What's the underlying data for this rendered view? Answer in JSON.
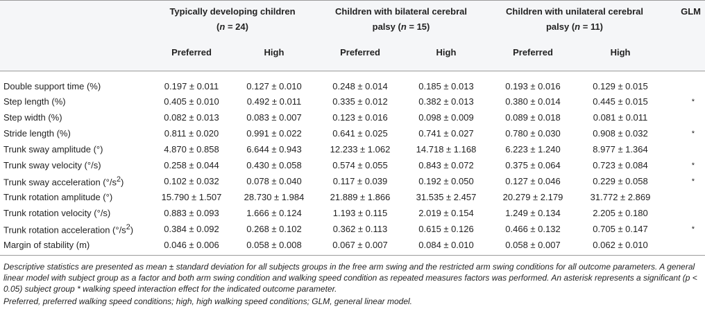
{
  "header": {
    "groups": [
      {
        "line1": "Typically developing children",
        "n_label": "n",
        "n_value": " = 24)"
      },
      {
        "line1": "Children with bilateral cerebral",
        "line2_prefix": "palsy (",
        "n_label": "n",
        "n_value": " = 15)"
      },
      {
        "line1": "Children with unilateral cerebral",
        "line2_prefix": "palsy (",
        "n_label": "n",
        "n_value": " = 11)"
      }
    ],
    "glm": "GLM",
    "preferred": "Preferred",
    "high": "High",
    "open_paren": "("
  },
  "rows": [
    {
      "label": "Double support time (%)",
      "values": [
        "0.197 ± 0.011",
        "0.127 ± 0.010",
        "0.248 ± 0.014",
        "0.185 ± 0.013",
        "0.193 ± 0.016",
        "0.129 ± 0.015"
      ],
      "glm": ""
    },
    {
      "label": "Step length (%)",
      "values": [
        "0.405 ± 0.010",
        "0.492 ± 0.011",
        "0.335 ± 0.012",
        "0.382 ± 0.013",
        "0.380 ± 0.014",
        "0.445 ± 0.015"
      ],
      "glm": "*"
    },
    {
      "label": "Step width (%)",
      "values": [
        "0.082 ± 0.013",
        "0.083 ± 0.007",
        "0.123 ± 0.016",
        "0.098 ± 0.009",
        "0.089 ± 0.018",
        "0.081 ± 0.011"
      ],
      "glm": ""
    },
    {
      "label": "Stride length (%)",
      "values": [
        "0.811 ± 0.020",
        "0.991 ± 0.022",
        "0.641 ± 0.025",
        "0.741 ± 0.027",
        "0.780 ± 0.030",
        "0.908 ± 0.032"
      ],
      "glm": "*"
    },
    {
      "label": "Trunk sway amplitude (°)",
      "values": [
        "4.870 ± 0.858",
        "6.644 ± 0.943",
        "12.233 ± 1.062",
        "14.718 ± 1.168",
        "6.223 ± 1.240",
        "8.977 ± 1.364"
      ],
      "glm": ""
    },
    {
      "label": "Trunk sway velocity (°/s)",
      "values": [
        "0.258 ± 0.044",
        "0.430 ± 0.058",
        "0.574 ± 0.055",
        "0.843 ± 0.072",
        "0.375 ± 0.064",
        "0.723 ± 0.084"
      ],
      "glm": "*"
    },
    {
      "label": "Trunk sway acceleration (°/s",
      "sup": "2",
      "label_end": ")",
      "values": [
        "0.102 ± 0.032",
        "0.078 ± 0.040",
        "0.117 ± 0.039",
        "0.192 ± 0.050",
        "0.127 ± 0.046",
        "0.229 ± 0.058"
      ],
      "glm": "*"
    },
    {
      "label": "Trunk rotation amplitude (°)",
      "values": [
        "15.790 ± 1.507",
        "28.730 ± 1.984",
        "21.889 ± 1.866",
        "31.535 ± 2.457",
        "20.279 ± 2.179",
        "31.772 ± 2.869"
      ],
      "glm": ""
    },
    {
      "label": "Trunk rotation velocity (°/s)",
      "values": [
        "0.883 ± 0.093",
        "1.666 ± 0.124",
        "1.193 ± 0.115",
        "2.019 ± 0.154",
        "1.249 ± 0.134",
        "2.205 ± 0.180"
      ],
      "glm": ""
    },
    {
      "label": "Trunk rotation acceleration (°/s",
      "sup": "2",
      "label_end": ")",
      "values": [
        "0.384 ± 0.092",
        "0.268 ± 0.102",
        "0.362 ± 0.113",
        "0.615 ± 0.126",
        "0.466 ± 0.132",
        "0.705 ± 0.147"
      ],
      "glm": "*"
    },
    {
      "label": "Margin of stability (m)",
      "values": [
        "0.046 ± 0.006",
        "0.058 ± 0.008",
        "0.067 ± 0.007",
        "0.084 ± 0.010",
        "0.058 ± 0.007",
        "0.062 ± 0.010"
      ],
      "glm": ""
    }
  ],
  "footnote": "Descriptive statistics are presented as mean ± standard deviation for all subjects groups in the free arm swing and the restricted arm swing conditions for all outcome parameters. A general linear model with subject group as a factor and both arm swing condition and walking speed condition as repeated measures factors was performed. An asterisk represents a significant (p < 0.05) subject group * walking speed interaction effect for the indicated outcome parameter.",
  "abbreviations": "Preferred, preferred walking speed conditions; high, high walking speed conditions; GLM, general linear model."
}
